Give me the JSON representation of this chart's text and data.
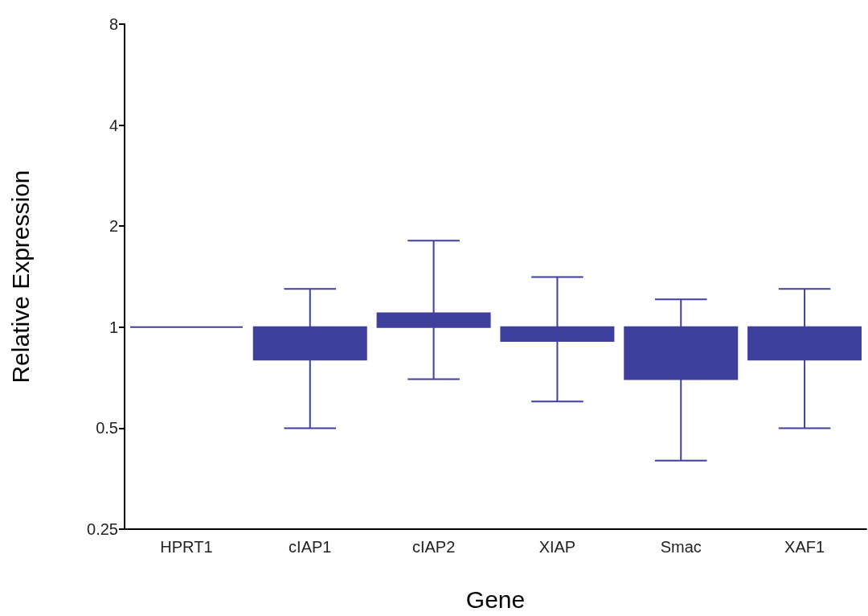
{
  "chart_data": {
    "type": "bar",
    "xlabel": "Gene",
    "ylabel": "Relative Expression",
    "categories": [
      "HPRT1",
      "cIAP1",
      "cIAP2",
      "XIAP",
      "Smac",
      "XAF1"
    ],
    "base": [
      1,
      1,
      1,
      1,
      1,
      1
    ],
    "values": [
      0,
      -0.2,
      0.1,
      -0.09,
      -0.3,
      -0.2
    ],
    "errors": [
      null,
      [
        0.5,
        1.3
      ],
      [
        0.7,
        1.81
      ],
      [
        0.6,
        1.41
      ],
      [
        0.4,
        1.21
      ],
      [
        0.5,
        1.3
      ]
    ],
    "color": "#3f3f9d",
    "log": "y",
    "ylim": [
      0.25,
      8
    ],
    "yticks": [
      0.25,
      0.5,
      1,
      2,
      4,
      8
    ],
    "grid": false,
    "legend": false
  }
}
